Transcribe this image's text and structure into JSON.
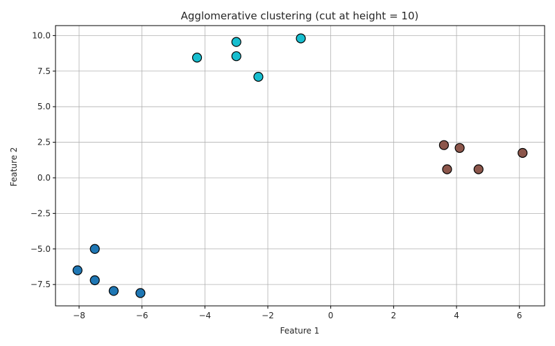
{
  "chart_data": {
    "type": "scatter",
    "title": "Agglomerative clustering (cut at height = 10)",
    "xlabel": "Feature 1",
    "ylabel": "Feature 2",
    "xlim": [
      -8.75,
      6.8
    ],
    "ylim": [
      -9.0,
      10.7
    ],
    "xticks": [
      -8,
      -6,
      -4,
      -2,
      0,
      2,
      4,
      6
    ],
    "yticks": [
      -7.5,
      -5.0,
      -2.5,
      0.0,
      2.5,
      5.0,
      7.5,
      10.0
    ],
    "xtick_labels": [
      "−8",
      "−6",
      "−4",
      "−2",
      "0",
      "2",
      "4",
      "6"
    ],
    "ytick_labels": [
      "−7.5",
      "−5.0",
      "−2.5",
      "0.0",
      "2.5",
      "5.0",
      "7.5",
      "10.0"
    ],
    "grid": true,
    "series": [
      {
        "color": "#1f77b4",
        "points": [
          [
            -7.5,
            -5.0
          ],
          [
            -8.05,
            -6.5
          ],
          [
            -7.5,
            -7.2
          ],
          [
            -6.9,
            -7.95
          ],
          [
            -6.05,
            -8.1
          ]
        ]
      },
      {
        "color": "#8c564b",
        "points": [
          [
            3.6,
            2.3
          ],
          [
            4.1,
            2.1
          ],
          [
            6.1,
            1.75
          ],
          [
            3.7,
            0.6
          ],
          [
            4.7,
            0.6
          ]
        ]
      },
      {
        "color": "#17becf",
        "points": [
          [
            -4.25,
            8.45
          ],
          [
            -3.0,
            9.55
          ],
          [
            -3.0,
            8.55
          ],
          [
            -2.3,
            7.1
          ],
          [
            -0.95,
            9.8
          ]
        ]
      }
    ]
  }
}
